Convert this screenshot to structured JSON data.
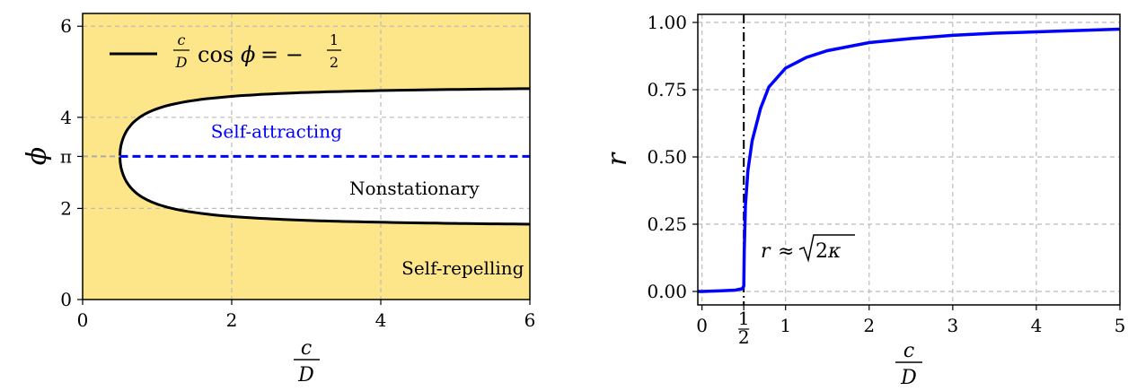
{
  "chart_data": [
    {
      "type": "area",
      "xlabel": {
        "num": "c",
        "den": "D"
      },
      "ylabel": "ϕ",
      "xlim": [
        0,
        6
      ],
      "ylim": [
        0,
        6.28
      ],
      "xticks": [
        0,
        2,
        4,
        6
      ],
      "xtick_labels": [
        "0",
        "2",
        "4",
        "6"
      ],
      "yticks": [
        0,
        2,
        4,
        6
      ],
      "ytick_labels": [
        "0",
        "2",
        "4",
        "6"
      ],
      "extra_ytick": {
        "value": 3.1416,
        "label": "π",
        "color": "#0000ff"
      },
      "grid": true,
      "fill_color": "#fde68a",
      "legend": {
        "placement": "top-left",
        "label": "c/D cos ϕ = −1/2"
      },
      "series": [
        {
          "name": "c/D cos ϕ = −1/2",
          "color": "#000000",
          "style": "solid",
          "x": [
            0.5,
            0.503,
            0.52,
            0.55,
            0.6,
            0.7,
            0.8,
            1.0,
            1.25,
            1.5,
            2.0,
            2.5,
            3.0,
            3.5,
            4.0,
            4.5,
            5.0,
            5.5,
            6.0
          ],
          "y_upper": [
            3.1416,
            3.386,
            3.613,
            3.793,
            3.985,
            4.228,
            4.389,
            4.189,
            4.5,
            4.533,
            4.584,
            4.611,
            4.628,
            4.641,
            4.649,
            4.657,
            4.662,
            4.667,
            4.671
          ],
          "y_lower": [
            3.1416,
            2.897,
            2.671,
            2.49,
            2.299,
            2.055,
            1.895,
            2.094,
            1.983,
            1.911,
            1.823,
            1.772,
            1.738,
            1.714,
            1.697,
            1.682,
            1.671,
            1.662,
            1.654
          ]
        },
        {
          "name": "ϕ = π",
          "color": "#0000ff",
          "style": "dashed",
          "x": [
            0.5,
            6.0
          ],
          "y": [
            3.1416,
            3.1416
          ]
        }
      ],
      "annotations": [
        {
          "text": "Self-attracting",
          "x": 2.6,
          "y": 3.55,
          "color": "#0000ff"
        },
        {
          "text": "Nonstationary",
          "x": 4.45,
          "y": 2.3,
          "color": "#000000"
        },
        {
          "text": "Self-repelling",
          "x": 5.1,
          "y": 0.55,
          "color": "#000000"
        }
      ]
    },
    {
      "type": "line",
      "xlabel": {
        "num": "c",
        "den": "D"
      },
      "ylabel": "r",
      "xlim": [
        -0.05,
        5
      ],
      "ylim": [
        -0.05,
        1.03
      ],
      "xticks": [
        0,
        0.5,
        1,
        2,
        3,
        4,
        5
      ],
      "xtick_labels": [
        "0",
        "1/2",
        "1",
        "2",
        "3",
        "4",
        "5"
      ],
      "yticks": [
        0,
        0.25,
        0.5,
        0.75,
        1.0
      ],
      "ytick_labels": [
        "0.00",
        "0.25",
        "0.50",
        "0.75",
        "1.00"
      ],
      "grid": true,
      "vline": {
        "x": 0.5,
        "style": "dashdot",
        "color": "#000000"
      },
      "series": [
        {
          "name": "r",
          "color": "#0000ff",
          "x": [
            -0.05,
            0,
            0.2,
            0.4,
            0.48,
            0.5,
            0.505,
            0.52,
            0.55,
            0.6,
            0.7,
            0.8,
            1.0,
            1.25,
            1.5,
            2.0,
            2.5,
            3.0,
            3.5,
            4.0,
            4.5,
            5.0
          ],
          "y": [
            0.0,
            0.0,
            0.002,
            0.005,
            0.01,
            0.02,
            0.15,
            0.32,
            0.45,
            0.56,
            0.68,
            0.76,
            0.83,
            0.87,
            0.895,
            0.925,
            0.94,
            0.952,
            0.96,
            0.965,
            0.97,
            0.975
          ]
        }
      ],
      "annotations": [
        {
          "text": "r ≈ √2κ",
          "x": 1.3,
          "y": 0.15,
          "color": "#000000"
        }
      ]
    }
  ]
}
